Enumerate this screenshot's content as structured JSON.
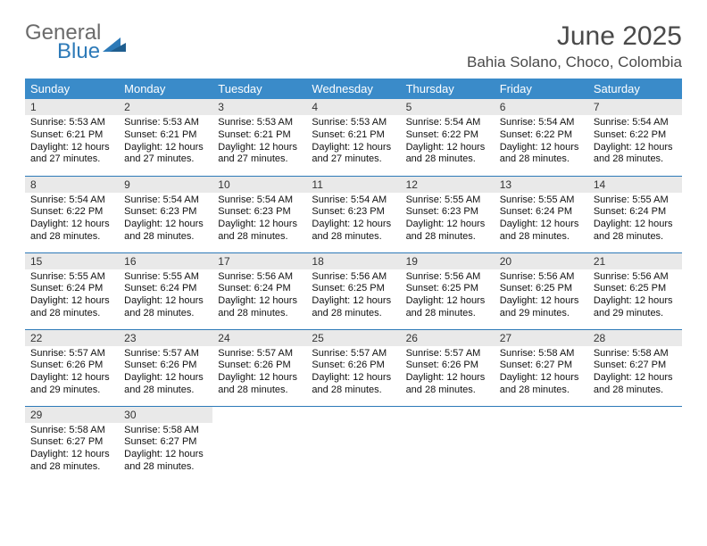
{
  "brand": {
    "word1": "General",
    "word2": "Blue"
  },
  "title": "June 2025",
  "location": "Bahia Solano, Choco, Colombia",
  "colors": {
    "header_bg": "#3a8bc9",
    "header_text": "#ffffff",
    "rule": "#2d7ab8",
    "daynum_bg": "#e9e9e9",
    "logo_grey": "#6b6b6b",
    "logo_blue": "#2d7ab8"
  },
  "weekdays": [
    "Sunday",
    "Monday",
    "Tuesday",
    "Wednesday",
    "Thursday",
    "Friday",
    "Saturday"
  ],
  "weeks": [
    [
      {
        "n": "1",
        "sr": "Sunrise: 5:53 AM",
        "ss": "Sunset: 6:21 PM",
        "dl1": "Daylight: 12 hours",
        "dl2": "and 27 minutes."
      },
      {
        "n": "2",
        "sr": "Sunrise: 5:53 AM",
        "ss": "Sunset: 6:21 PM",
        "dl1": "Daylight: 12 hours",
        "dl2": "and 27 minutes."
      },
      {
        "n": "3",
        "sr": "Sunrise: 5:53 AM",
        "ss": "Sunset: 6:21 PM",
        "dl1": "Daylight: 12 hours",
        "dl2": "and 27 minutes."
      },
      {
        "n": "4",
        "sr": "Sunrise: 5:53 AM",
        "ss": "Sunset: 6:21 PM",
        "dl1": "Daylight: 12 hours",
        "dl2": "and 27 minutes."
      },
      {
        "n": "5",
        "sr": "Sunrise: 5:54 AM",
        "ss": "Sunset: 6:22 PM",
        "dl1": "Daylight: 12 hours",
        "dl2": "and 28 minutes."
      },
      {
        "n": "6",
        "sr": "Sunrise: 5:54 AM",
        "ss": "Sunset: 6:22 PM",
        "dl1": "Daylight: 12 hours",
        "dl2": "and 28 minutes."
      },
      {
        "n": "7",
        "sr": "Sunrise: 5:54 AM",
        "ss": "Sunset: 6:22 PM",
        "dl1": "Daylight: 12 hours",
        "dl2": "and 28 minutes."
      }
    ],
    [
      {
        "n": "8",
        "sr": "Sunrise: 5:54 AM",
        "ss": "Sunset: 6:22 PM",
        "dl1": "Daylight: 12 hours",
        "dl2": "and 28 minutes."
      },
      {
        "n": "9",
        "sr": "Sunrise: 5:54 AM",
        "ss": "Sunset: 6:23 PM",
        "dl1": "Daylight: 12 hours",
        "dl2": "and 28 minutes."
      },
      {
        "n": "10",
        "sr": "Sunrise: 5:54 AM",
        "ss": "Sunset: 6:23 PM",
        "dl1": "Daylight: 12 hours",
        "dl2": "and 28 minutes."
      },
      {
        "n": "11",
        "sr": "Sunrise: 5:54 AM",
        "ss": "Sunset: 6:23 PM",
        "dl1": "Daylight: 12 hours",
        "dl2": "and 28 minutes."
      },
      {
        "n": "12",
        "sr": "Sunrise: 5:55 AM",
        "ss": "Sunset: 6:23 PM",
        "dl1": "Daylight: 12 hours",
        "dl2": "and 28 minutes."
      },
      {
        "n": "13",
        "sr": "Sunrise: 5:55 AM",
        "ss": "Sunset: 6:24 PM",
        "dl1": "Daylight: 12 hours",
        "dl2": "and 28 minutes."
      },
      {
        "n": "14",
        "sr": "Sunrise: 5:55 AM",
        "ss": "Sunset: 6:24 PM",
        "dl1": "Daylight: 12 hours",
        "dl2": "and 28 minutes."
      }
    ],
    [
      {
        "n": "15",
        "sr": "Sunrise: 5:55 AM",
        "ss": "Sunset: 6:24 PM",
        "dl1": "Daylight: 12 hours",
        "dl2": "and 28 minutes."
      },
      {
        "n": "16",
        "sr": "Sunrise: 5:55 AM",
        "ss": "Sunset: 6:24 PM",
        "dl1": "Daylight: 12 hours",
        "dl2": "and 28 minutes."
      },
      {
        "n": "17",
        "sr": "Sunrise: 5:56 AM",
        "ss": "Sunset: 6:24 PM",
        "dl1": "Daylight: 12 hours",
        "dl2": "and 28 minutes."
      },
      {
        "n": "18",
        "sr": "Sunrise: 5:56 AM",
        "ss": "Sunset: 6:25 PM",
        "dl1": "Daylight: 12 hours",
        "dl2": "and 28 minutes."
      },
      {
        "n": "19",
        "sr": "Sunrise: 5:56 AM",
        "ss": "Sunset: 6:25 PM",
        "dl1": "Daylight: 12 hours",
        "dl2": "and 28 minutes."
      },
      {
        "n": "20",
        "sr": "Sunrise: 5:56 AM",
        "ss": "Sunset: 6:25 PM",
        "dl1": "Daylight: 12 hours",
        "dl2": "and 29 minutes."
      },
      {
        "n": "21",
        "sr": "Sunrise: 5:56 AM",
        "ss": "Sunset: 6:25 PM",
        "dl1": "Daylight: 12 hours",
        "dl2": "and 29 minutes."
      }
    ],
    [
      {
        "n": "22",
        "sr": "Sunrise: 5:57 AM",
        "ss": "Sunset: 6:26 PM",
        "dl1": "Daylight: 12 hours",
        "dl2": "and 29 minutes."
      },
      {
        "n": "23",
        "sr": "Sunrise: 5:57 AM",
        "ss": "Sunset: 6:26 PM",
        "dl1": "Daylight: 12 hours",
        "dl2": "and 28 minutes."
      },
      {
        "n": "24",
        "sr": "Sunrise: 5:57 AM",
        "ss": "Sunset: 6:26 PM",
        "dl1": "Daylight: 12 hours",
        "dl2": "and 28 minutes."
      },
      {
        "n": "25",
        "sr": "Sunrise: 5:57 AM",
        "ss": "Sunset: 6:26 PM",
        "dl1": "Daylight: 12 hours",
        "dl2": "and 28 minutes."
      },
      {
        "n": "26",
        "sr": "Sunrise: 5:57 AM",
        "ss": "Sunset: 6:26 PM",
        "dl1": "Daylight: 12 hours",
        "dl2": "and 28 minutes."
      },
      {
        "n": "27",
        "sr": "Sunrise: 5:58 AM",
        "ss": "Sunset: 6:27 PM",
        "dl1": "Daylight: 12 hours",
        "dl2": "and 28 minutes."
      },
      {
        "n": "28",
        "sr": "Sunrise: 5:58 AM",
        "ss": "Sunset: 6:27 PM",
        "dl1": "Daylight: 12 hours",
        "dl2": "and 28 minutes."
      }
    ],
    [
      {
        "n": "29",
        "sr": "Sunrise: 5:58 AM",
        "ss": "Sunset: 6:27 PM",
        "dl1": "Daylight: 12 hours",
        "dl2": "and 28 minutes."
      },
      {
        "n": "30",
        "sr": "Sunrise: 5:58 AM",
        "ss": "Sunset: 6:27 PM",
        "dl1": "Daylight: 12 hours",
        "dl2": "and 28 minutes."
      },
      {
        "empty": true,
        "n": "",
        "sr": "",
        "ss": "",
        "dl1": "",
        "dl2": ""
      },
      {
        "empty": true,
        "n": "",
        "sr": "",
        "ss": "",
        "dl1": "",
        "dl2": ""
      },
      {
        "empty": true,
        "n": "",
        "sr": "",
        "ss": "",
        "dl1": "",
        "dl2": ""
      },
      {
        "empty": true,
        "n": "",
        "sr": "",
        "ss": "",
        "dl1": "",
        "dl2": ""
      },
      {
        "empty": true,
        "n": "",
        "sr": "",
        "ss": "",
        "dl1": "",
        "dl2": ""
      }
    ]
  ]
}
